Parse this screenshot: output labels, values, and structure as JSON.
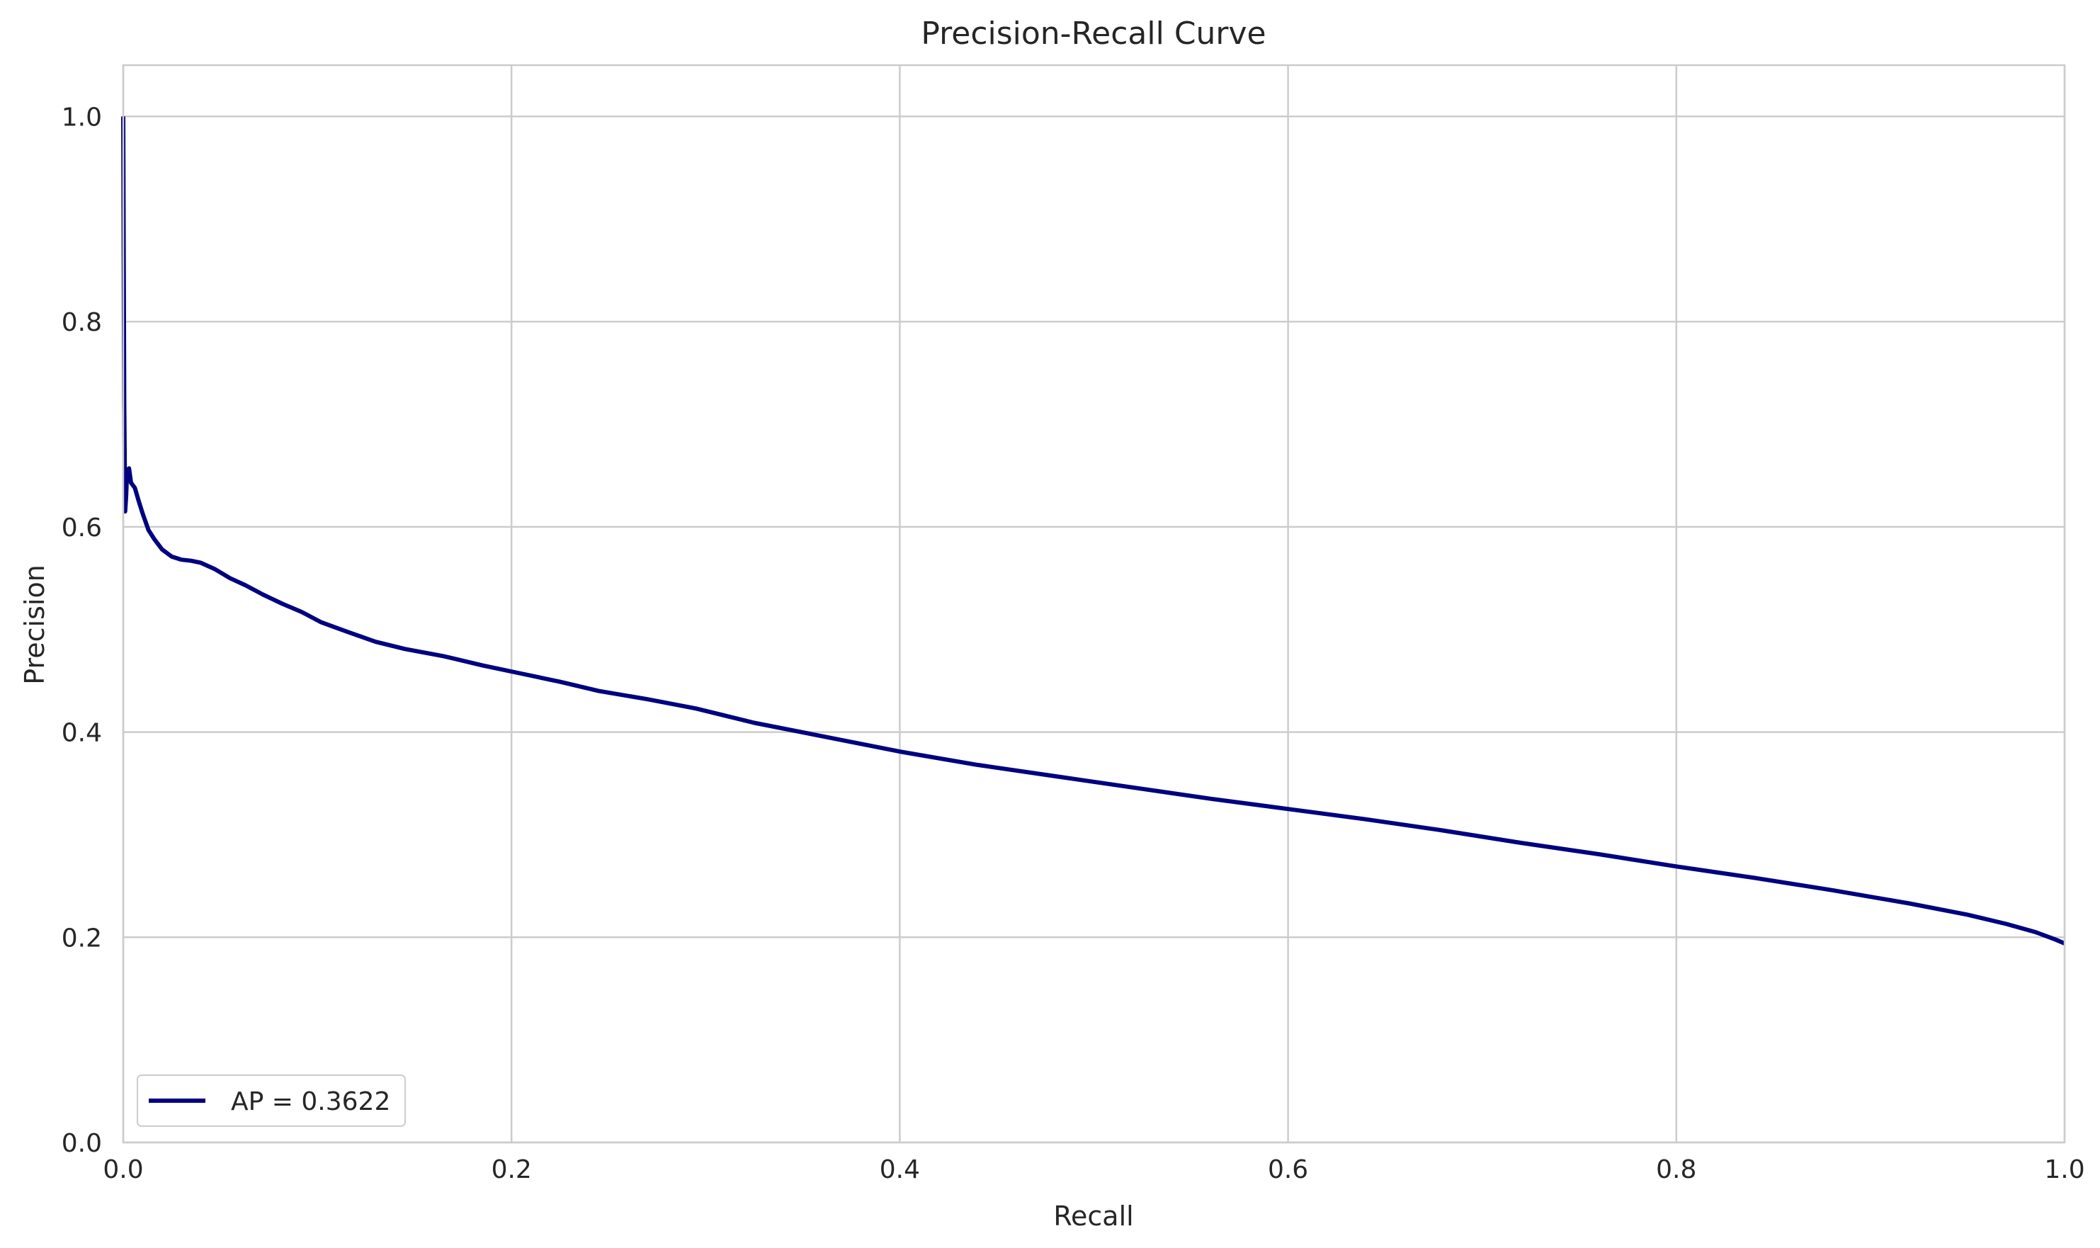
{
  "chart_data": {
    "type": "line",
    "title": "Precision-Recall Curve",
    "xlabel": "Recall",
    "ylabel": "Precision",
    "xlim": [
      0.0,
      1.0
    ],
    "ylim": [
      0.0,
      1.05
    ],
    "xticks": [
      "0.0",
      "0.2",
      "0.4",
      "0.6",
      "0.8",
      "1.0"
    ],
    "yticks": [
      "0.0",
      "0.2",
      "0.4",
      "0.6",
      "0.8",
      "1.0"
    ],
    "grid": true,
    "legend_position": "lower-left",
    "colors": {
      "line": "#000080",
      "grid": "#cccccc",
      "frame": "#cccccc"
    },
    "series": [
      {
        "name": "AP = 0.3622",
        "x": [
          0.0,
          0.0005,
          0.001,
          0.0015,
          0.002,
          0.003,
          0.004,
          0.006,
          0.008,
          0.01,
          0.013,
          0.016,
          0.02,
          0.025,
          0.03,
          0.035,
          0.04,
          0.047,
          0.055,
          0.063,
          0.072,
          0.082,
          0.092,
          0.102,
          0.115,
          0.13,
          0.145,
          0.165,
          0.185,
          0.205,
          0.225,
          0.245,
          0.27,
          0.295,
          0.325,
          0.36,
          0.4,
          0.44,
          0.48,
          0.52,
          0.56,
          0.6,
          0.64,
          0.68,
          0.72,
          0.76,
          0.8,
          0.84,
          0.88,
          0.92,
          0.95,
          0.97,
          0.985,
          0.995,
          1.0
        ],
        "y": [
          1.0,
          0.72,
          0.615,
          0.63,
          0.655,
          0.657,
          0.643,
          0.638,
          0.625,
          0.613,
          0.597,
          0.588,
          0.578,
          0.571,
          0.568,
          0.567,
          0.565,
          0.559,
          0.55,
          0.543,
          0.534,
          0.525,
          0.517,
          0.507,
          0.498,
          0.488,
          0.481,
          0.474,
          0.465,
          0.457,
          0.449,
          0.44,
          0.432,
          0.423,
          0.409,
          0.396,
          0.381,
          0.368,
          0.357,
          0.346,
          0.335,
          0.325,
          0.315,
          0.304,
          0.292,
          0.281,
          0.269,
          0.258,
          0.246,
          0.233,
          0.222,
          0.213,
          0.205,
          0.198,
          0.194
        ]
      }
    ]
  }
}
